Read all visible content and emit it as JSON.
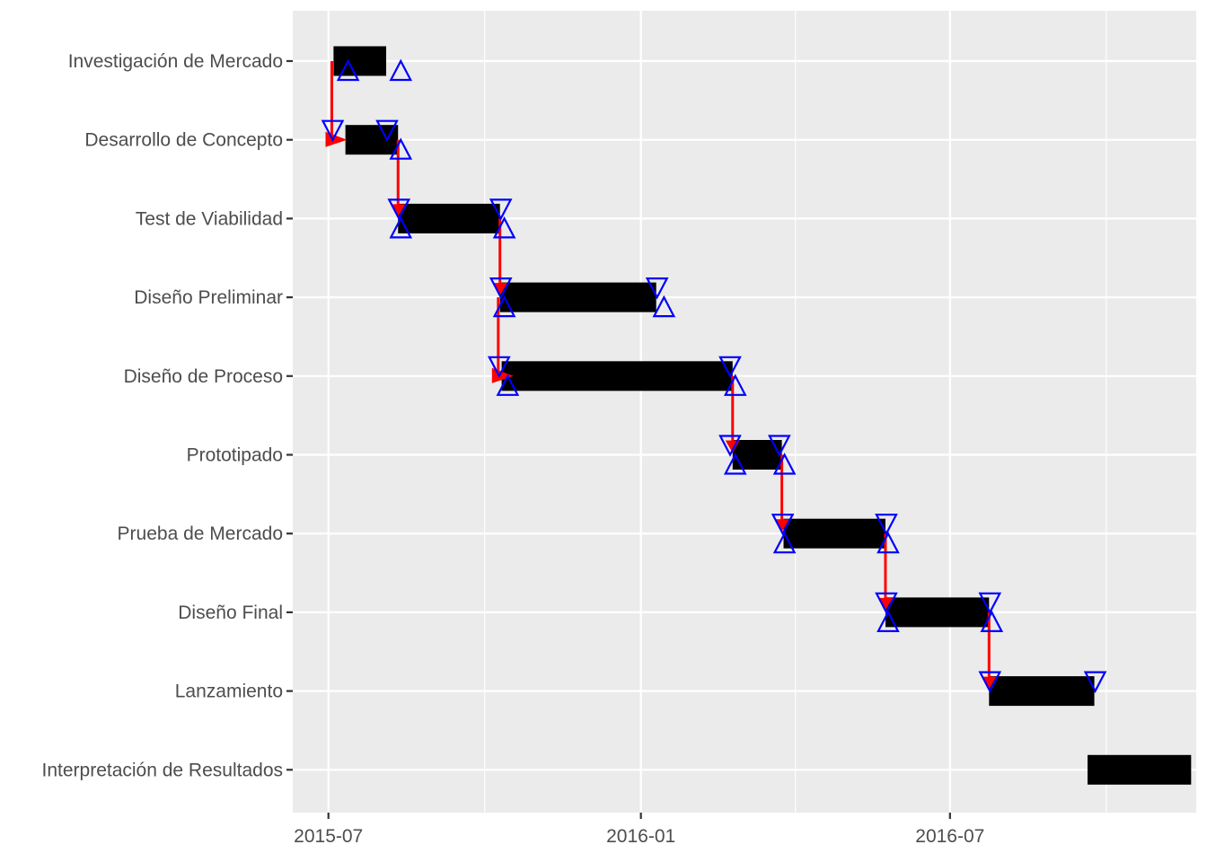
{
  "chart_data": {
    "type": "gantt",
    "x_axis": {
      "ticks": [
        "2015-07",
        "2016-01",
        "2016-07"
      ],
      "range": [
        "2015-06-10",
        "2016-11-23"
      ]
    },
    "tasks": [
      {
        "name": "Investigación de Mercado",
        "start": "2015-07-04",
        "end": "2015-08-04"
      },
      {
        "name": "Desarrollo de Concepto",
        "start": "2015-07-11",
        "end": "2015-08-11"
      },
      {
        "name": "Test de Viabilidad",
        "start": "2015-08-11",
        "end": "2015-10-10"
      },
      {
        "name": "Diseño Preliminar",
        "start": "2015-10-10",
        "end": "2016-01-10"
      },
      {
        "name": "Diseño de Proceso",
        "start": "2015-10-11",
        "end": "2016-02-24"
      },
      {
        "name": "Prototipado",
        "start": "2016-02-24",
        "end": "2016-03-24"
      },
      {
        "name": "Prueba de Mercado",
        "start": "2016-03-25",
        "end": "2016-05-24"
      },
      {
        "name": "Diseño Final",
        "start": "2016-05-24",
        "end": "2016-07-24"
      },
      {
        "name": "Lanzamiento",
        "start": "2016-07-24",
        "end": "2016-09-24"
      },
      {
        "name": "Interpretación de Resultados",
        "start": "2016-09-20",
        "end": "2016-11-20"
      }
    ],
    "dependencies": [
      {
        "from": 0,
        "to": 1,
        "date": "2015-07-03",
        "style": "side"
      },
      {
        "from": 1,
        "to": 2,
        "date": "2015-08-11",
        "style": "down"
      },
      {
        "from": 2,
        "to": 3,
        "date": "2015-10-10",
        "style": "down"
      },
      {
        "from": 3,
        "to": 4,
        "date": "2015-10-09",
        "style": "side"
      },
      {
        "from": 4,
        "to": 5,
        "date": "2016-02-24",
        "style": "down"
      },
      {
        "from": 5,
        "to": 6,
        "date": "2016-03-24",
        "style": "down"
      },
      {
        "from": 6,
        "to": 7,
        "date": "2016-05-24",
        "style": "down"
      },
      {
        "from": 7,
        "to": 8,
        "date": "2016-07-24",
        "style": "down"
      }
    ],
    "markers": {
      "up": [
        "2015-07-11",
        "2015-08-11",
        "2015-08-11",
        "2015-08-11",
        "2015-10-11",
        "2015-10-11",
        "2016-01-13",
        "2015-10-13",
        "2016-02-24",
        "2016-02-24",
        "2016-03-24",
        "2016-03-24",
        "2016-05-24",
        "2016-05-24",
        "2016-07-24"
      ],
      "up_rows": [
        0,
        0,
        1,
        2,
        2,
        3,
        3,
        4,
        4,
        5,
        5,
        6,
        6,
        7,
        7
      ],
      "down": [
        "2015-07-03",
        "2015-08-04",
        "2015-08-11",
        "2015-10-10",
        "2015-10-10",
        "2016-01-10",
        "2015-10-09",
        "2016-02-22",
        "2016-02-22",
        "2016-03-22",
        "2016-03-24",
        "2016-05-24",
        "2016-05-24",
        "2016-07-24",
        "2016-07-24",
        "2016-09-24"
      ],
      "down_rows": [
        1,
        1,
        2,
        2,
        3,
        3,
        4,
        4,
        5,
        5,
        6,
        6,
        7,
        7,
        8,
        8
      ]
    },
    "colors": {
      "panel": "#ebebeb",
      "grid": "#ffffff",
      "bar": "#000000",
      "arrow": "#ff0000",
      "marker": "#0000ff",
      "axis_text": "#4d4d4d"
    },
    "grid": true
  }
}
